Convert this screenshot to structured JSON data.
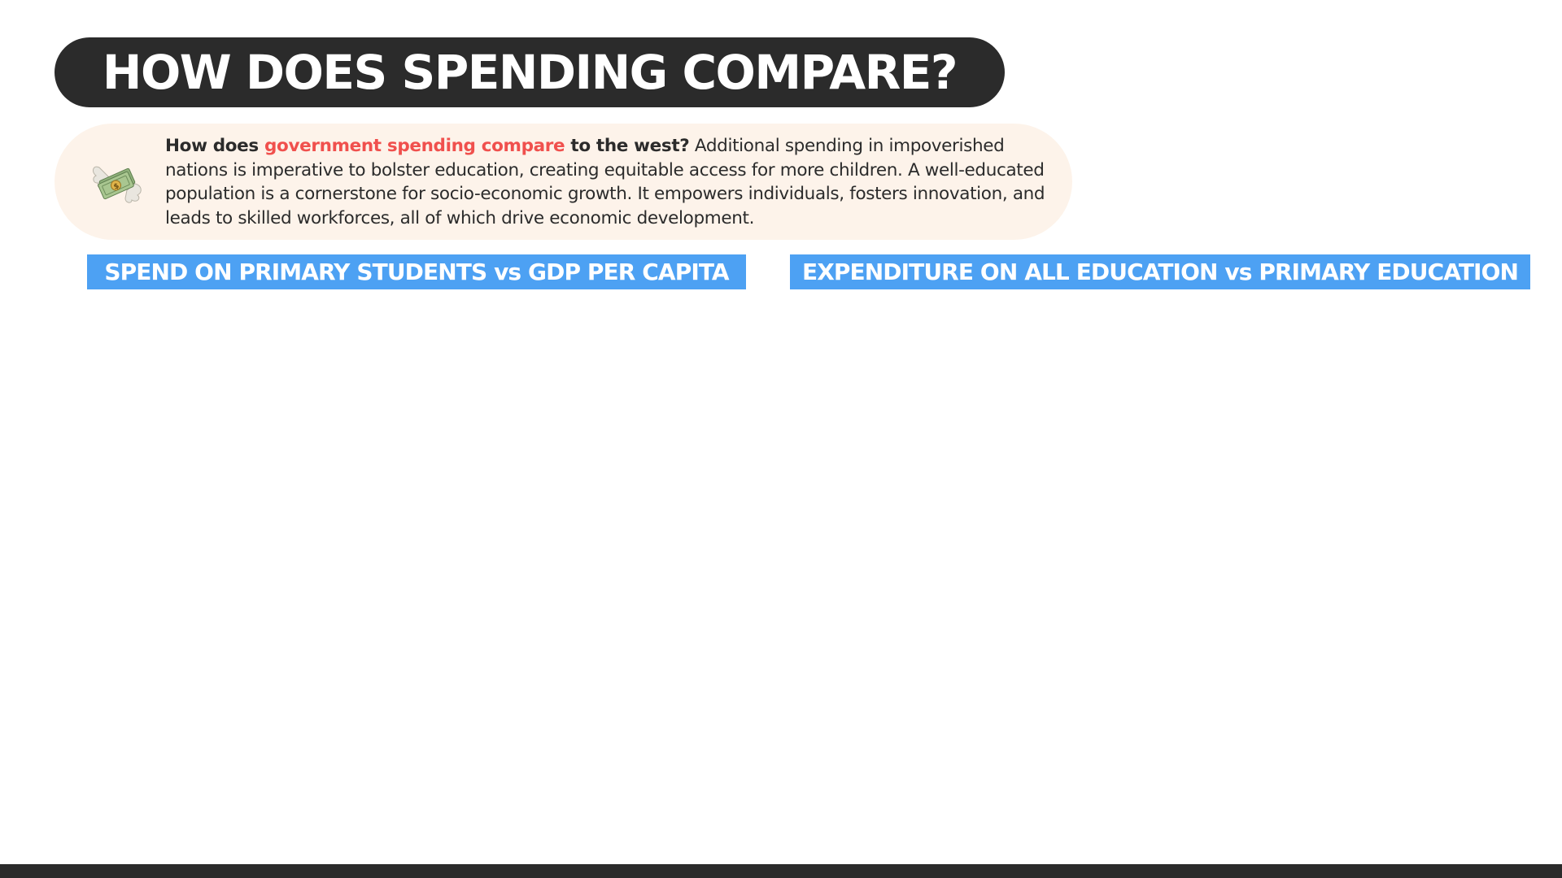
{
  "slide": {
    "title": "HOW DOES SPENDING COMPARE?",
    "intro": {
      "icon": "money-with-wings-icon",
      "lead": "How does ",
      "highlight": "government spending compare",
      "lead_tail": " to the west?",
      "body": " Additional spending in impoverished nations is imperative to bolster education, creating equitable access for more children. A well-educated population is a cornerstone for socio-economic growth. It empowers individuals, fosters innovation, and leads to skilled workforces, all of which drive economic development."
    },
    "sections": [
      {
        "label": "SPEND ON PRIMARY STUDENTS vs GDP PER CAPITA"
      },
      {
        "label": "EXPENDITURE ON ALL EDUCATION vs PRIMARY EDUCATION"
      }
    ]
  },
  "colors": {
    "title_bg": "#2b2b2b",
    "intro_bg": "#fdf3ea",
    "accent": "#f0504d",
    "section_label_bg": "#4da1f3",
    "footer_bg": "#2b2b2b"
  }
}
